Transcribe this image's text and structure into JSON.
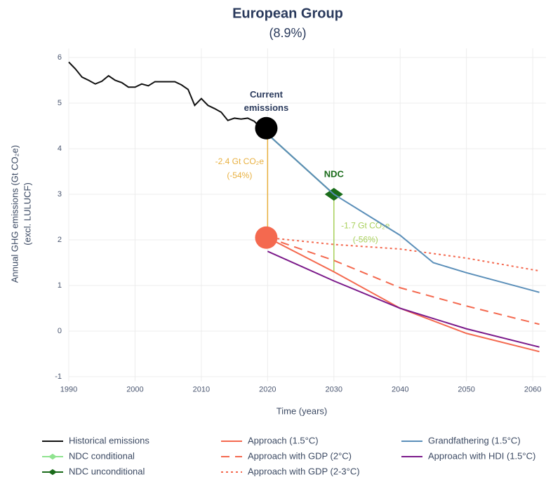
{
  "chart_data": {
    "type": "line",
    "title": "European Group",
    "subtitle": "(8.9%)",
    "x_label": "Time (years)",
    "y_label": [
      "Annual GHG emissions (Gt CO₂e)",
      "(excl. LULUCF)"
    ],
    "xlim": [
      1990,
      2062
    ],
    "ylim": [
      -1.1,
      6.2
    ],
    "xticks": [
      1990,
      2000,
      2010,
      2020,
      2030,
      2040,
      2050,
      2060
    ],
    "yticks": [
      -1,
      0,
      1,
      2,
      3,
      4,
      5,
      6
    ],
    "grid": true,
    "series": [
      {
        "name": "Historical emissions",
        "color": "#111111",
        "dash": "solid",
        "x": [
          1990,
          1991,
          1992,
          1993,
          1994,
          1995,
          1996,
          1997,
          1998,
          1999,
          2000,
          2001,
          2002,
          2003,
          2004,
          2005,
          2006,
          2007,
          2008,
          2009,
          2010,
          2011,
          2012,
          2013,
          2014,
          2015,
          2016,
          2017,
          2018,
          2019
        ],
        "values": [
          5.9,
          5.75,
          5.57,
          5.5,
          5.42,
          5.48,
          5.6,
          5.5,
          5.45,
          5.35,
          5.35,
          5.42,
          5.38,
          5.47,
          5.47,
          5.47,
          5.47,
          5.4,
          5.3,
          4.95,
          5.1,
          4.95,
          4.88,
          4.8,
          4.62,
          4.67,
          4.65,
          4.67,
          4.6,
          4.45
        ]
      },
      {
        "name": "NDC conditional",
        "color": "#8fe38f",
        "dash": "solid",
        "marker": "diamond",
        "x": [
          2030
        ],
        "values": [
          3.0
        ]
      },
      {
        "name": "NDC unconditional",
        "color": "#1a6b1a",
        "dash": "solid",
        "marker": "diamond",
        "x": [
          2019,
          2030
        ],
        "values": [
          4.45,
          3.0
        ]
      },
      {
        "name": "Approach (1.5°C)",
        "color": "#f4694f",
        "dash": "solid",
        "x": [
          2020,
          2030,
          2040,
          2050,
          2061
        ],
        "values": [
          2.05,
          1.3,
          0.5,
          -0.05,
          -0.45
        ]
      },
      {
        "name": "Approach with GDP (2°C)",
        "color": "#f4694f",
        "dash": "dash",
        "x": [
          2020,
          2030,
          2040,
          2050,
          2061
        ],
        "values": [
          2.05,
          1.55,
          0.95,
          0.55,
          0.15
        ]
      },
      {
        "name": "Approach with GDP (2-3°C)",
        "color": "#f4694f",
        "dash": "dot",
        "x": [
          2020,
          2030,
          2040,
          2050,
          2061
        ],
        "values": [
          2.05,
          1.9,
          1.8,
          1.6,
          1.32
        ]
      },
      {
        "name": "Grandfathering (1.5°C)",
        "color": "#5b8fb9",
        "dash": "solid",
        "x": [
          2019,
          2030,
          2040,
          2045,
          2050,
          2061
        ],
        "values": [
          4.45,
          3.0,
          2.1,
          1.5,
          1.28,
          0.85
        ]
      },
      {
        "name": "Approach with HDI (1.5°C)",
        "color": "#7b1a8a",
        "dash": "solid",
        "x": [
          2020,
          2030,
          2040,
          2050,
          2061
        ],
        "values": [
          1.75,
          1.1,
          0.5,
          0.05,
          -0.35
        ]
      }
    ],
    "points": [
      {
        "x": 2019.8,
        "y": 4.45,
        "color": "#000000"
      },
      {
        "x": 2019.8,
        "y": 2.05,
        "color": "#f4694f"
      }
    ],
    "annotations": [
      {
        "lines": [
          "Current",
          "emissions"
        ],
        "x": 2019.8,
        "y": 4.45,
        "color": "#2a3a5c"
      },
      {
        "lines": [
          "NDC"
        ],
        "x": 2030,
        "y": 3.0,
        "color": "#1a6b1a"
      }
    ],
    "reductions": [
      {
        "lines": [
          "-2.4 Gt CO₂e",
          "(-54%)"
        ],
        "color": "#e8b040",
        "x": 2020,
        "y_from": 4.45,
        "y_to": 2.05
      },
      {
        "lines": [
          "-1.7 Gt CO₂e",
          "(-56%)"
        ],
        "color": "#a8d05a",
        "x": 2030,
        "y_from": 3.0,
        "y_to": 1.3
      }
    ]
  }
}
